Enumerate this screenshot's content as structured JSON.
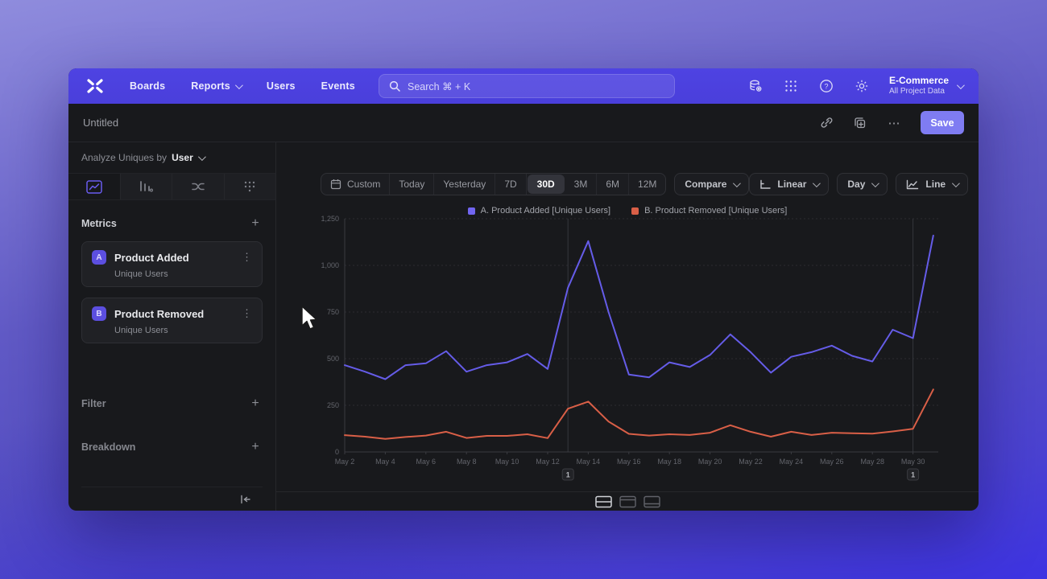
{
  "colors": {
    "nav_bg": "#4a3fdb",
    "accent": "#7f7cf2",
    "series_a": "#655ce8",
    "series_b": "#d95f47",
    "window_bg": "#18191c"
  },
  "nav": {
    "logo": "mixpanel-logo",
    "items": [
      {
        "label": "Boards"
      },
      {
        "label": "Reports"
      },
      {
        "label": "Users"
      },
      {
        "label": "Events"
      }
    ],
    "search": {
      "placeholder": "Search  ⌘ + K"
    },
    "icons": [
      "data-management-icon",
      "apps-grid-icon",
      "help-icon",
      "settings-gear-icon"
    ],
    "project": {
      "name": "E-Commerce",
      "subtitle": "All Project Data"
    }
  },
  "toolbar": {
    "title": "Untitled",
    "save_label": "Save"
  },
  "sidebar": {
    "header": {
      "prefix": "Analyze Uniques by",
      "value": "User"
    },
    "tabs": [
      "insights",
      "funnels",
      "flows",
      "retention"
    ],
    "metrics": {
      "label": "Metrics",
      "items": [
        {
          "badge": "A",
          "name": "Product Added",
          "subtitle": "Unique Users"
        },
        {
          "badge": "B",
          "name": "Product Removed",
          "subtitle": "Unique Users"
        }
      ]
    },
    "filter_label": "Filter",
    "breakdown_label": "Breakdown"
  },
  "chart_toolbar": {
    "ranges": [
      "Custom",
      "Today",
      "Yesterday",
      "7D",
      "30D",
      "3M",
      "6M",
      "12M"
    ],
    "selected_range": "30D",
    "compare_label": "Compare",
    "scale_label": "Linear",
    "interval_label": "Day",
    "type_label": "Line"
  },
  "legend": [
    {
      "label": "A. Product Added [Unique Users]",
      "color": "#7165f0"
    },
    {
      "label": "B. Product Removed [Unique Users]",
      "color": "#d95f47"
    }
  ],
  "chart_data": {
    "type": "line",
    "title": "",
    "xlabel": "",
    "ylabel": "",
    "ylim": [
      0,
      1250
    ],
    "yticks": [
      0,
      250,
      500,
      750,
      1000,
      1250
    ],
    "grid": "horizontal-dashed",
    "legend_position": "top",
    "x": [
      "May 2",
      "May 3",
      "May 4",
      "May 5",
      "May 6",
      "May 7",
      "May 8",
      "May 9",
      "May 10",
      "May 11",
      "May 12",
      "May 13",
      "May 14",
      "May 15",
      "May 16",
      "May 17",
      "May 18",
      "May 19",
      "May 20",
      "May 21",
      "May 22",
      "May 23",
      "May 24",
      "May 25",
      "May 26",
      "May 27",
      "May 28",
      "May 29",
      "May 30",
      "May 31"
    ],
    "x_tick_every": 2,
    "series": [
      {
        "name": "A. Product Added [Unique Users]",
        "color": "#655ce8",
        "values": [
          465,
          430,
          390,
          465,
          475,
          540,
          430,
          465,
          480,
          525,
          445,
          880,
          1130,
          750,
          415,
          400,
          480,
          455,
          520,
          630,
          535,
          425,
          510,
          535,
          570,
          515,
          485,
          655,
          610,
          1160
        ]
      },
      {
        "name": "B. Product Removed [Unique Users]",
        "color": "#d95f47",
        "values": [
          90,
          82,
          70,
          80,
          88,
          108,
          75,
          86,
          86,
          95,
          74,
          232,
          270,
          163,
          97,
          88,
          95,
          91,
          103,
          143,
          108,
          82,
          108,
          91,
          103,
          100,
          98,
          110,
          124,
          335
        ]
      }
    ],
    "annotations": [
      {
        "label": "1",
        "x_index": 11
      },
      {
        "label": "1",
        "x_index": 28
      }
    ]
  },
  "footer": {
    "layout_options": [
      "split-view",
      "chart-only",
      "table-only"
    ],
    "selected": "split-view"
  }
}
